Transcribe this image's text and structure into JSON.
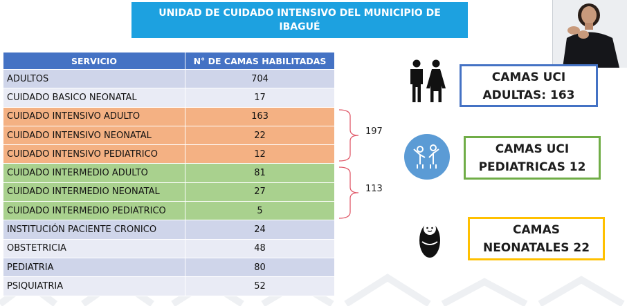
{
  "header": {
    "title_line1": "UNIDAD DE CUIDADO INTENSIVO DEL MUNICIPIO DE",
    "title_line2": "IBAGUÉ"
  },
  "table": {
    "headers": [
      "SERVICIO",
      "N° DE CAMAS HABILITADAS"
    ],
    "rows": [
      {
        "service": "ADULTOS",
        "beds": "704",
        "group": "blue-dark"
      },
      {
        "service": "CUIDADO BASICO NEONATAL",
        "beds": "17",
        "group": "blue-light"
      },
      {
        "service": "CUIDADO INTENSIVO ADULTO",
        "beds": "163",
        "group": "orange"
      },
      {
        "service": "CUIDADO INTENSIVO NEONATAL",
        "beds": "22",
        "group": "orange"
      },
      {
        "service": "CUIDADO INTENSIVO PEDIATRICO",
        "beds": "12",
        "group": "orange"
      },
      {
        "service": "CUIDADO INTERMEDIO ADULTO",
        "beds": "81",
        "group": "green"
      },
      {
        "service": "CUIDADO INTERMEDIO NEONATAL",
        "beds": "27",
        "group": "green"
      },
      {
        "service": "CUIDADO INTERMEDIO PEDIATRICO",
        "beds": "5",
        "group": "green"
      },
      {
        "service": "INSTITUCIÓN PACIENTE CRONICO",
        "beds": "24",
        "group": "blue-dark"
      },
      {
        "service": "OBSTETRICIA",
        "beds": "48",
        "group": "blue-light"
      },
      {
        "service": "PEDIATRIA",
        "beds": "80",
        "group": "blue-dark"
      },
      {
        "service": "PSIQUIATRIA",
        "beds": "52",
        "group": "blue-light"
      }
    ]
  },
  "braces": {
    "intensive_total": "197",
    "intermediate_total": "113"
  },
  "summary": {
    "adults_line1": "CAMAS UCI",
    "adults_line2": "ADULTAS: 163",
    "pediatric_line1": "CAMAS UCI",
    "pediatric_line2": "PEDIATRICAS 12",
    "neonatal_line1": "CAMAS",
    "neonatal_line2": "NEONATALES 22"
  },
  "icons": {
    "adults": "man-woman-icon",
    "pediatric": "children-icon",
    "neonatal": "baby-icon",
    "interpreter": "sign-language-interpreter-video"
  },
  "colors": {
    "title_bg": "#1da1e0",
    "table_header": "#4472c4",
    "intensive": "#f4b183",
    "intermediate": "#a9d18e",
    "adults_border": "#4472c4",
    "pediatric_border": "#70ad47",
    "neonatal_border": "#ffc000"
  }
}
